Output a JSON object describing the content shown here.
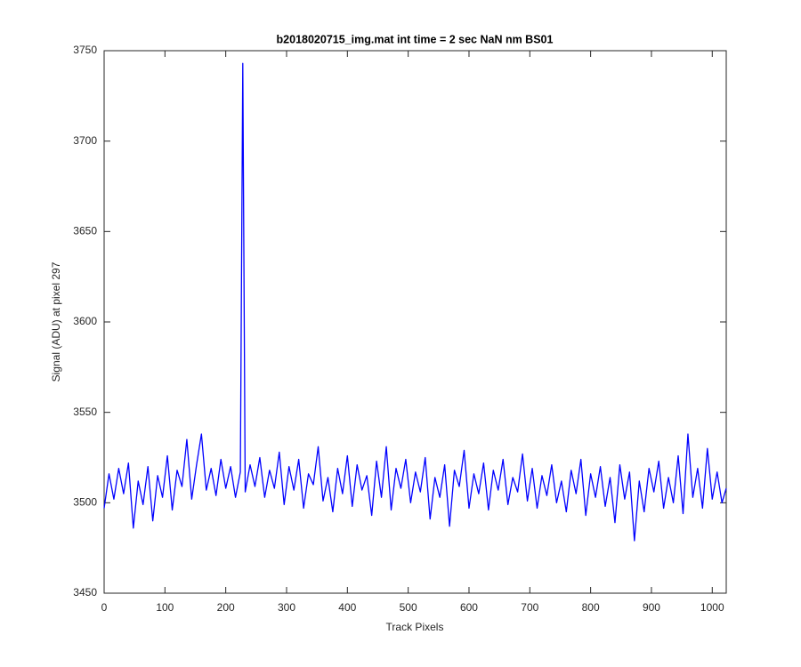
{
  "chart_data": {
    "type": "line",
    "title": "b2018020715_img.mat int time = 2 sec  NaN nm BS01",
    "x_label": "Track Pixels",
    "y_label": "Signal (ADU) at pixel 297",
    "xlim": [
      0,
      1023
    ],
    "ylim": [
      3450,
      3750
    ],
    "xticks": [
      0,
      100,
      200,
      300,
      400,
      500,
      600,
      700,
      800,
      900,
      1000
    ],
    "yticks": [
      3450,
      3500,
      3550,
      3600,
      3650,
      3700,
      3750
    ],
    "grid": false,
    "x": [
      0,
      8,
      16,
      24,
      32,
      40,
      48,
      56,
      64,
      72,
      80,
      88,
      96,
      104,
      112,
      120,
      128,
      136,
      144,
      152,
      160,
      168,
      176,
      184,
      192,
      200,
      208,
      216,
      224,
      228,
      232,
      240,
      248,
      256,
      264,
      272,
      280,
      288,
      296,
      304,
      312,
      320,
      328,
      336,
      344,
      352,
      360,
      368,
      376,
      384,
      392,
      400,
      408,
      416,
      424,
      432,
      440,
      448,
      456,
      464,
      472,
      480,
      488,
      496,
      504,
      512,
      520,
      528,
      536,
      544,
      552,
      560,
      568,
      576,
      584,
      592,
      600,
      608,
      616,
      624,
      632,
      640,
      648,
      656,
      664,
      672,
      680,
      688,
      696,
      704,
      712,
      720,
      728,
      736,
      744,
      752,
      760,
      768,
      776,
      784,
      792,
      800,
      808,
      816,
      824,
      832,
      840,
      848,
      856,
      864,
      872,
      880,
      888,
      896,
      904,
      912,
      920,
      928,
      936,
      944,
      952,
      960,
      968,
      976,
      984,
      992,
      1000,
      1008,
      1016,
      1023
    ],
    "series": [
      {
        "name": "Signal",
        "color": "#0000ff",
        "values": [
          3497,
          3516,
          3502,
          3519,
          3505,
          3522,
          3486,
          3512,
          3499,
          3520,
          3490,
          3515,
          3503,
          3526,
          3496,
          3518,
          3509,
          3535,
          3502,
          3521,
          3538,
          3507,
          3519,
          3504,
          3524,
          3508,
          3520,
          3503,
          3517,
          3743,
          3506,
          3521,
          3509,
          3525,
          3503,
          3518,
          3508,
          3528,
          3499,
          3520,
          3507,
          3524,
          3497,
          3516,
          3510,
          3531,
          3501,
          3514,
          3495,
          3519,
          3505,
          3526,
          3498,
          3521,
          3507,
          3515,
          3493,
          3523,
          3503,
          3531,
          3496,
          3519,
          3508,
          3524,
          3500,
          3517,
          3506,
          3525,
          3491,
          3514,
          3503,
          3521,
          3487,
          3518,
          3509,
          3529,
          3497,
          3516,
          3505,
          3522,
          3496,
          3518,
          3507,
          3524,
          3499,
          3514,
          3506,
          3527,
          3501,
          3519,
          3497,
          3515,
          3504,
          3521,
          3500,
          3512,
          3495,
          3518,
          3505,
          3524,
          3493,
          3516,
          3503,
          3520,
          3498,
          3514,
          3489,
          3521,
          3502,
          3517,
          3479,
          3512,
          3495,
          3519,
          3506,
          3523,
          3497,
          3514,
          3500,
          3526,
          3494,
          3538,
          3503,
          3519,
          3497,
          3530,
          3502,
          3517,
          3500,
          3508
        ]
      }
    ]
  }
}
